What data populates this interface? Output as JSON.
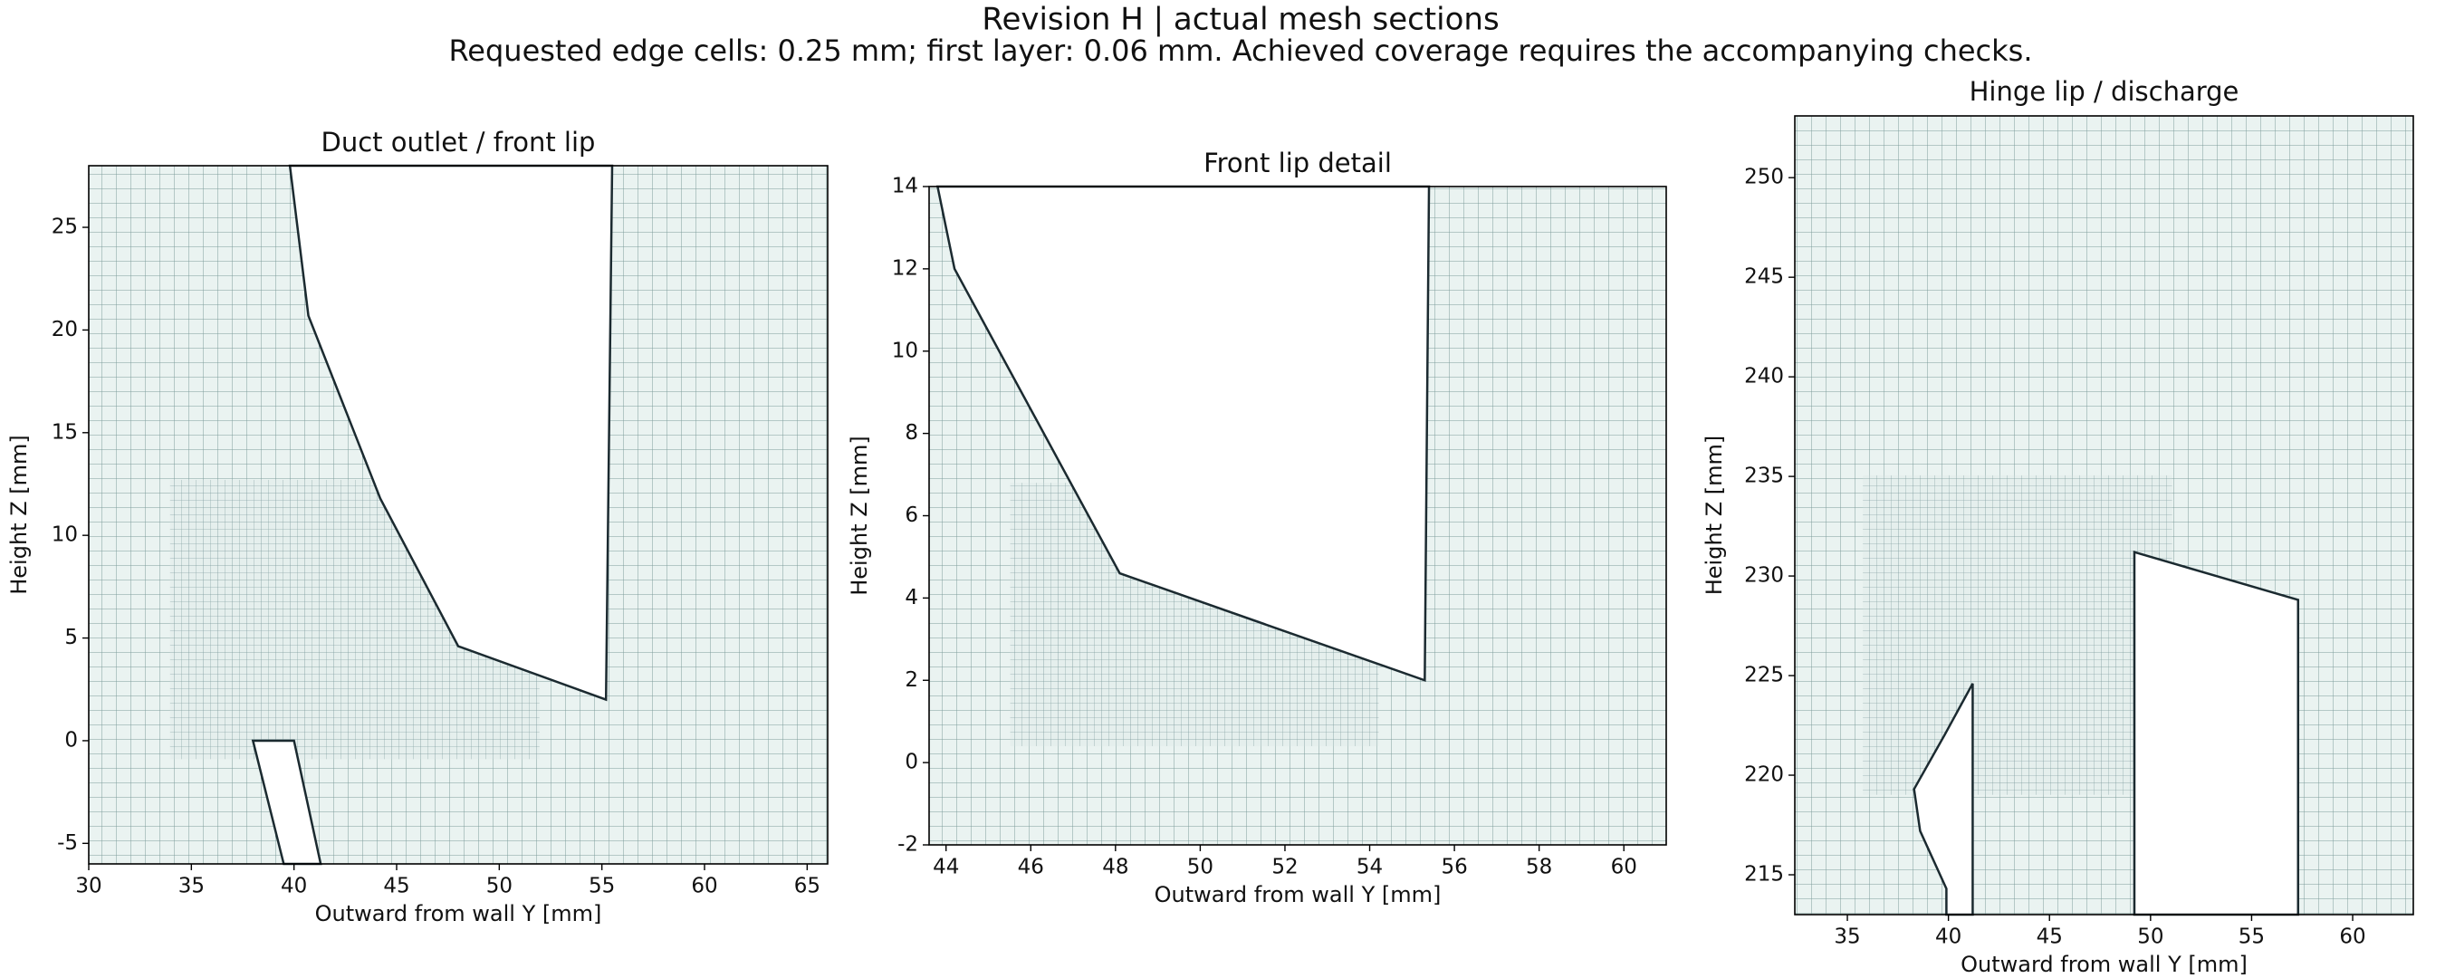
{
  "chart_data": [
    {
      "type": "mesh",
      "title": "Duct outlet / front lip",
      "x_label": "Outward from wall Y [mm]",
      "y_label": "Height Z [mm]",
      "xlim": [
        30,
        66
      ],
      "ylim": [
        -6,
        28
      ],
      "xticks": [
        30,
        35,
        40,
        45,
        50,
        55,
        60,
        65
      ],
      "yticks": [
        -5,
        0,
        5,
        10,
        15,
        20,
        25
      ],
      "solids": [
        {
          "x": [
            39.8,
            40.7,
            44.2,
            48.0,
            55.2,
            55.5
          ],
          "y": [
            28,
            20.7,
            11.8,
            4.6,
            2.0,
            28
          ]
        },
        {
          "x": [
            38.0,
            40.0,
            41.3,
            39.5
          ],
          "y": [
            0,
            0,
            -6,
            -6
          ]
        }
      ]
    },
    {
      "type": "mesh",
      "title": "Front lip detail",
      "x_label": "Outward from wall Y [mm]",
      "y_label": "Height Z [mm]",
      "xlim": [
        43.6,
        61
      ],
      "ylim": [
        -2,
        14
      ],
      "xticks": [
        44,
        46,
        48,
        50,
        52,
        54,
        56,
        58,
        60
      ],
      "yticks": [
        -2,
        0,
        2,
        4,
        6,
        8,
        10,
        12,
        14
      ],
      "solids": [
        {
          "x": [
            43.8,
            44.2,
            48.1,
            55.3,
            55.4
          ],
          "y": [
            14,
            12,
            4.6,
            2.0,
            14
          ]
        }
      ]
    },
    {
      "type": "mesh",
      "title": "Hinge lip / discharge",
      "x_label": "Outward from wall Y [mm]",
      "y_label": "Height Z [mm]",
      "xlim": [
        32.4,
        63
      ],
      "ylim": [
        213,
        253.1
      ],
      "xticks": [
        35,
        40,
        45,
        50,
        55,
        60
      ],
      "yticks": [
        215,
        220,
        225,
        230,
        235,
        240,
        245,
        250
      ],
      "solids": [
        {
          "x": [
            41.2,
            39.8,
            38.3,
            38.6,
            39.9,
            39.9,
            41.2
          ],
          "y": [
            224.6,
            222.0,
            219.3,
            217.2,
            214.3,
            213,
            213
          ]
        },
        {
          "x": [
            49.2,
            57.3,
            57.3,
            49.2
          ],
          "y": [
            231.2,
            228.8,
            213,
            213
          ]
        }
      ]
    }
  ],
  "suptitle": "Revision H | actual mesh sections",
  "subtitle": "Requested edge cells: 0.25 mm; first layer: 0.06 mm. Achieved coverage requires the accompanying checks."
}
